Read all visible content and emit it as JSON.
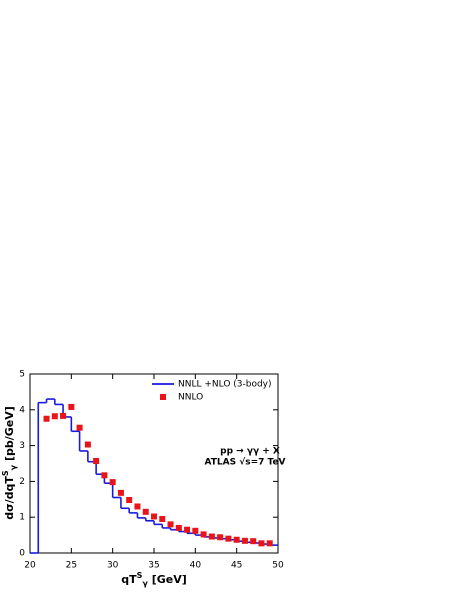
{
  "chart_data": {
    "type": "histogram",
    "xlabel": {
      "main": "qT",
      "sup": "S",
      "sub": "γ",
      "unit": " [GeV]"
    },
    "ylabel": {
      "main": "dσ/dqT",
      "sup": "S",
      "sub": "γ",
      "unit": " [pb/GeV]"
    },
    "annotations": [
      "pp → γγ + X",
      "ATLAS  √s=7 TeV"
    ],
    "xlim": [
      20,
      50
    ],
    "ylim": [
      0,
      5
    ],
    "xticks": [
      20,
      25,
      30,
      35,
      40,
      45,
      50
    ],
    "yticks": [
      0,
      1,
      2,
      3,
      4,
      5
    ],
    "legend": "upper right",
    "series": [
      {
        "name": "NNLL +NLO (3-body)",
        "color": "#1a1adc",
        "type": "step",
        "bins": [
          21,
          22,
          23,
          24,
          25,
          26,
          27,
          28,
          29,
          30,
          31,
          32,
          33,
          34,
          35,
          36,
          37,
          38,
          39,
          40,
          41,
          42,
          43,
          44,
          45,
          46,
          47,
          48,
          49,
          50
        ],
        "values": [
          4.2,
          4.3,
          4.15,
          3.8,
          3.4,
          2.85,
          2.55,
          2.2,
          1.95,
          1.55,
          1.25,
          1.12,
          0.98,
          0.9,
          0.8,
          0.7,
          0.65,
          0.6,
          0.55,
          0.5,
          0.45,
          0.42,
          0.4,
          0.37,
          0.33,
          0.3,
          0.28,
          0.25,
          0.22
        ]
      },
      {
        "name": "NNLO",
        "color": "#e8141a",
        "type": "scatter",
        "x": [
          22,
          23,
          24,
          25,
          26,
          27,
          28,
          29,
          30,
          31,
          32,
          33,
          34,
          35,
          36,
          37,
          38,
          39,
          40,
          41,
          42,
          43,
          44,
          45,
          46,
          47,
          48,
          49
        ],
        "values": [
          3.75,
          3.82,
          3.83,
          4.08,
          3.5,
          3.03,
          2.57,
          2.17,
          1.98,
          1.68,
          1.48,
          1.3,
          1.15,
          1.02,
          0.95,
          0.8,
          0.7,
          0.65,
          0.62,
          0.52,
          0.46,
          0.44,
          0.4,
          0.37,
          0.34,
          0.33,
          0.27,
          0.27
        ]
      }
    ]
  }
}
